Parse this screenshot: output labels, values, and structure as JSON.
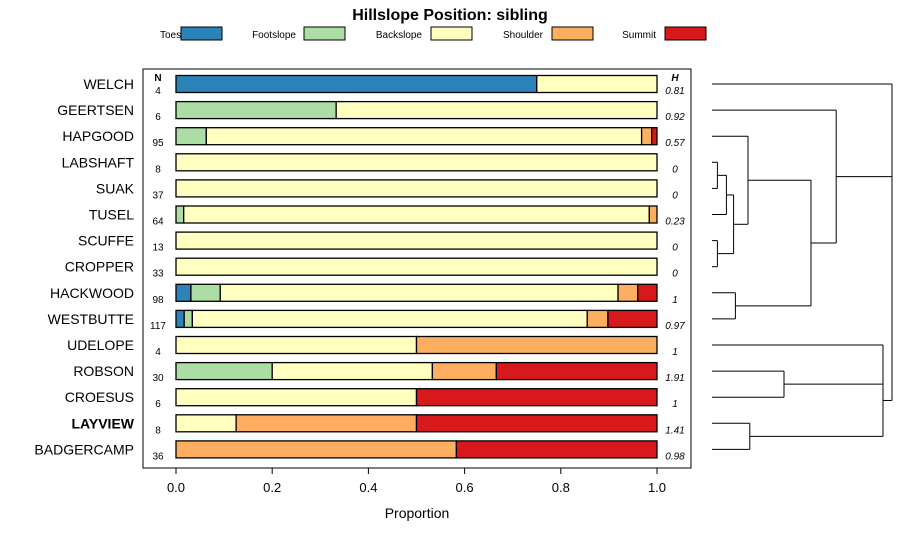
{
  "chart_data": {
    "type": "stacked-bar-horizontal",
    "title": "Hillslope Position: sibling",
    "xlabel": "Proportion",
    "xlim": [
      0,
      1
    ],
    "xticks": [
      "0.0",
      "0.2",
      "0.4",
      "0.6",
      "0.8",
      "1.0"
    ],
    "n_header": "N",
    "h_header": "H",
    "legend": [
      {
        "name": "Toeslope",
        "color": "#2b83ba"
      },
      {
        "name": "Footslope",
        "color": "#abdda4"
      },
      {
        "name": "Backslope",
        "color": "#ffffbf"
      },
      {
        "name": "Shoulder",
        "color": "#fdae61"
      },
      {
        "name": "Summit",
        "color": "#d7191c"
      }
    ],
    "rows": [
      {
        "label": "WELCH",
        "n": "4",
        "h": "0.81",
        "bold": false,
        "values": [
          0.75,
          0,
          0.25,
          0,
          0
        ]
      },
      {
        "label": "GEERTSEN",
        "n": "6",
        "h": "0.92",
        "bold": false,
        "values": [
          0,
          0.333,
          0.667,
          0,
          0
        ]
      },
      {
        "label": "HAPGOOD",
        "n": "95",
        "h": "0.57",
        "bold": false,
        "values": [
          0,
          0.063,
          0.905,
          0.021,
          0.011
        ]
      },
      {
        "label": "LABSHAFT",
        "n": "8",
        "h": "0",
        "bold": false,
        "values": [
          0,
          0,
          1,
          0,
          0
        ]
      },
      {
        "label": "SUAK",
        "n": "37",
        "h": "0",
        "bold": false,
        "values": [
          0,
          0,
          1,
          0,
          0
        ]
      },
      {
        "label": "TUSEL",
        "n": "64",
        "h": "0.23",
        "bold": false,
        "values": [
          0,
          0.016,
          0.968,
          0.016,
          0
        ]
      },
      {
        "label": "SCUFFE",
        "n": "13",
        "h": "0",
        "bold": false,
        "values": [
          0,
          0,
          1,
          0,
          0
        ]
      },
      {
        "label": "CROPPER",
        "n": "33",
        "h": "0",
        "bold": false,
        "values": [
          0,
          0,
          1,
          0,
          0
        ]
      },
      {
        "label": "HACKWOOD",
        "n": "98",
        "h": "1",
        "bold": false,
        "values": [
          0.031,
          0.061,
          0.827,
          0.041,
          0.04
        ]
      },
      {
        "label": "WESTBUTTE",
        "n": "117",
        "h": "0.97",
        "bold": false,
        "values": [
          0.017,
          0.017,
          0.821,
          0.043,
          0.102
        ]
      },
      {
        "label": "UDELOPE",
        "n": "4",
        "h": "1",
        "bold": false,
        "values": [
          0,
          0,
          0.5,
          0.5,
          0
        ]
      },
      {
        "label": "ROBSON",
        "n": "30",
        "h": "1.91",
        "bold": false,
        "values": [
          0,
          0.2,
          0.333,
          0.133,
          0.334
        ]
      },
      {
        "label": "CROESUS",
        "n": "6",
        "h": "1",
        "bold": false,
        "values": [
          0,
          0,
          0.5,
          0,
          0.5
        ]
      },
      {
        "label": "LAYVIEW",
        "n": "8",
        "h": "1.41",
        "bold": true,
        "values": [
          0,
          0,
          0.125,
          0.375,
          0.5
        ]
      },
      {
        "label": "BADGERCAMP",
        "n": "36",
        "h": "0.98",
        "bold": false,
        "values": [
          0,
          0,
          0,
          0.583,
          0.417
        ]
      }
    ],
    "dendrogram": {
      "merges": [
        [
          3,
          4,
          0.03
        ],
        [
          6,
          7,
          0.03
        ],
        [
          -1,
          5,
          0.08
        ],
        [
          -3,
          -2,
          0.12
        ],
        [
          2,
          -4,
          0.2
        ],
        [
          8,
          9,
          0.13
        ],
        [
          -5,
          -6,
          0.55
        ],
        [
          1,
          -7,
          0.69
        ],
        [
          0,
          -8,
          1.0
        ],
        [
          13,
          14,
          0.21
        ],
        [
          11,
          12,
          0.4
        ],
        [
          10,
          -11,
          0.95
        ],
        [
          -12,
          -10,
          0.95
        ],
        [
          -9,
          -13,
          1.0
        ]
      ]
    }
  }
}
